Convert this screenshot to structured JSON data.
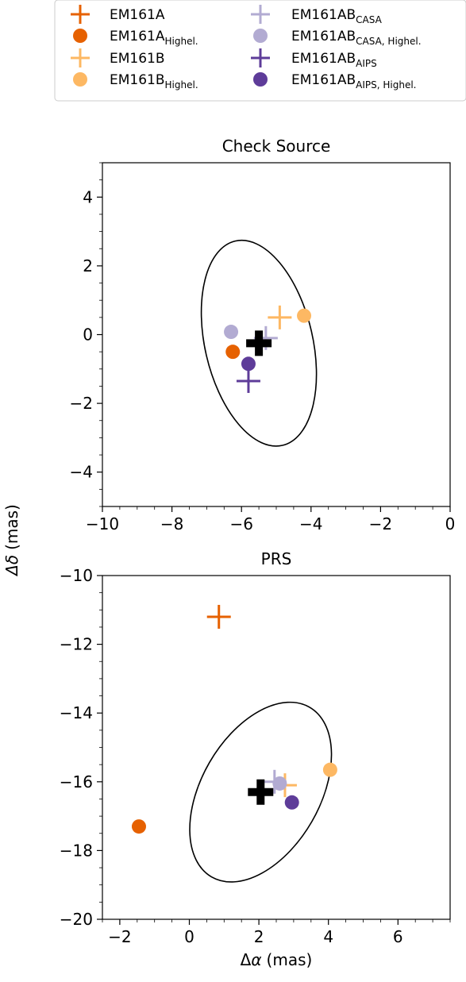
{
  "legend": {
    "placement": "top",
    "entries": [
      {
        "label": "EM161A",
        "sub": "",
        "marker": "plus",
        "color": "#e66101"
      },
      {
        "label": "EM161A",
        "sub": "Highel.",
        "marker": "circle",
        "color": "#e66101"
      },
      {
        "label": "EM161B",
        "sub": "",
        "marker": "plus",
        "color": "#fdb863"
      },
      {
        "label": "EM161B",
        "sub": "Highel.",
        "marker": "circle",
        "color": "#fdb863"
      },
      {
        "label": "EM161AB",
        "sub": "CASA",
        "marker": "plus",
        "color": "#b2abd2"
      },
      {
        "label": "EM161AB",
        "sub": "CASA, Highel.",
        "marker": "circle",
        "color": "#b2abd2"
      },
      {
        "label": "EM161AB",
        "sub": "AIPS",
        "marker": "plus",
        "color": "#5e3c99"
      },
      {
        "label": "EM161AB",
        "sub": "AIPS, Highel.",
        "marker": "circle",
        "color": "#5e3c99"
      }
    ]
  },
  "shared_ylabel": {
    "symbol": "Δδ",
    "unit": "(mas)"
  },
  "chart_data": [
    {
      "type": "scatter",
      "title": "Check Source",
      "xlabel": "",
      "xlim": [
        -10,
        0
      ],
      "ylim": [
        -5,
        5
      ],
      "xticks": [
        -10,
        -8,
        -6,
        -4,
        -2,
        0
      ],
      "yticks": [
        -4,
        -2,
        0,
        2,
        4
      ],
      "grid": false,
      "series": [
        {
          "name": "EM161A",
          "marker": "plus",
          "color": "#e66101",
          "x": [],
          "y": []
        },
        {
          "name": "EM161A Highel.",
          "marker": "circle",
          "color": "#e66101",
          "x": [
            -6.25
          ],
          "y": [
            -0.5
          ]
        },
        {
          "name": "EM161B",
          "marker": "plus",
          "color": "#fdb863",
          "x": [
            -4.9
          ],
          "y": [
            0.5
          ]
        },
        {
          "name": "EM161B Highel.",
          "marker": "circle",
          "color": "#fdb863",
          "x": [
            -4.2
          ],
          "y": [
            0.55
          ]
        },
        {
          "name": "EM161AB CASA",
          "marker": "plus",
          "color": "#b2abd2",
          "x": [
            -5.3
          ],
          "y": [
            -0.1
          ]
        },
        {
          "name": "EM161AB CASA, Highel.",
          "marker": "circle",
          "color": "#b2abd2",
          "x": [
            -6.3
          ],
          "y": [
            0.08
          ]
        },
        {
          "name": "EM161AB AIPS",
          "marker": "plus",
          "color": "#5e3c99",
          "x": [
            -5.8
          ],
          "y": [
            -1.35
          ]
        },
        {
          "name": "EM161AB AIPS, Highel.",
          "marker": "circle",
          "color": "#5e3c99",
          "x": [
            -5.8
          ],
          "y": [
            -0.85
          ]
        }
      ],
      "mean": {
        "x": -5.5,
        "y": -0.25
      },
      "ellipse": {
        "cx": -5.5,
        "cy": -0.25,
        "rx": 1.55,
        "ry": 3.05,
        "angle_deg": -13
      }
    },
    {
      "type": "scatter",
      "title": "PRS",
      "xlabel": "Δα (mas)",
      "xlim": [
        -2.5,
        7.5
      ],
      "ylim": [
        -20,
        -10
      ],
      "xticks": [
        -2,
        0,
        2,
        4,
        6
      ],
      "yticks": [
        -20,
        -18,
        -16,
        -14,
        -12,
        -10
      ],
      "grid": false,
      "series": [
        {
          "name": "EM161A",
          "marker": "plus",
          "color": "#e66101",
          "x": [
            0.85
          ],
          "y": [
            -11.2
          ]
        },
        {
          "name": "EM161A Highel.",
          "marker": "circle",
          "color": "#e66101",
          "x": [
            -1.45
          ],
          "y": [
            -17.3
          ]
        },
        {
          "name": "EM161B",
          "marker": "plus",
          "color": "#fdb863",
          "x": [
            2.75
          ],
          "y": [
            -16.1
          ]
        },
        {
          "name": "EM161B Highel.",
          "marker": "circle",
          "color": "#fdb863",
          "x": [
            4.05
          ],
          "y": [
            -15.65
          ]
        },
        {
          "name": "EM161AB CASA",
          "marker": "plus",
          "color": "#b2abd2",
          "x": [
            2.45
          ],
          "y": [
            -16.0
          ]
        },
        {
          "name": "EM161AB CASA, Highel.",
          "marker": "circle",
          "color": "#b2abd2",
          "x": [
            2.6
          ],
          "y": [
            -16.05
          ]
        },
        {
          "name": "EM161AB AIPS",
          "marker": "plus",
          "color": "#5e3c99",
          "x": [],
          "y": []
        },
        {
          "name": "EM161AB AIPS, Highel.",
          "marker": "circle",
          "color": "#5e3c99",
          "x": [
            2.95
          ],
          "y": [
            -16.6
          ]
        }
      ],
      "mean": {
        "x": 2.05,
        "y": -16.3
      },
      "ellipse": {
        "cx": 2.05,
        "cy": -16.3,
        "rx": 1.7,
        "ry": 2.85,
        "angle_deg": 30
      }
    }
  ]
}
